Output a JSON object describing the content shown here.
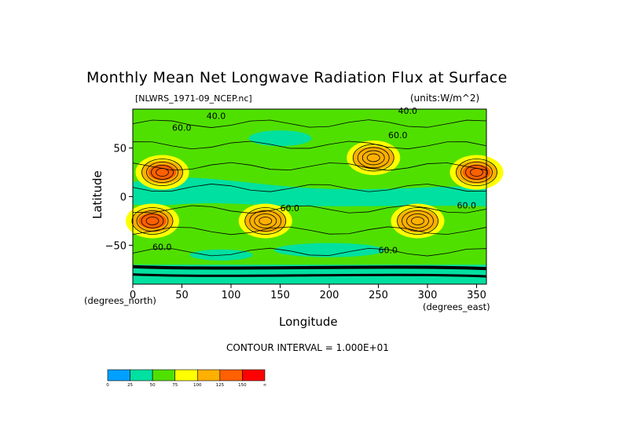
{
  "chart_data": {
    "type": "heatmap",
    "title": "Monthly Mean Net Longwave Radiation Flux at Surface",
    "file_label": "[NLWRS_1971-09_NCEP.nc]",
    "units_label": "(units:W/m^2)",
    "xlabel": "Longitude",
    "ylabel": "Latitude",
    "x_unit": "(degrees_east)",
    "y_unit": "(degrees_north)",
    "xlim": [
      0,
      360
    ],
    "ylim": [
      -90,
      90
    ],
    "x_ticks": [
      0,
      50,
      100,
      150,
      200,
      250,
      300,
      350
    ],
    "y_ticks": [
      -50,
      0,
      50
    ],
    "contour_interval": "CONTOUR INTERVAL = 1.000E+01",
    "contour_labels": [
      "40.0",
      "60.0"
    ],
    "colorbar": {
      "levels": [
        0,
        25,
        50,
        75,
        100,
        125,
        150,
        "∞"
      ],
      "level_labels": [
        "0",
        "25",
        "50",
        "75",
        "100",
        "125",
        "150",
        "∞"
      ],
      "colors": [
        "#00a0ff",
        "#00e0a0",
        "#50e000",
        "#ffff00",
        "#ffb000",
        "#ff6000",
        "#ff0000"
      ]
    },
    "features": [
      {
        "lon": 30,
        "lat": 25,
        "level": "125-150"
      },
      {
        "lon": 20,
        "lat": -25,
        "level": "125-150"
      },
      {
        "lon": 135,
        "lat": -25,
        "level": "100-125"
      },
      {
        "lon": 245,
        "lat": 40,
        "level": "100-125"
      },
      {
        "lon": 290,
        "lat": -25,
        "level": "100-125"
      },
      {
        "lon": 350,
        "lat": 25,
        "level": "125-150"
      }
    ]
  }
}
